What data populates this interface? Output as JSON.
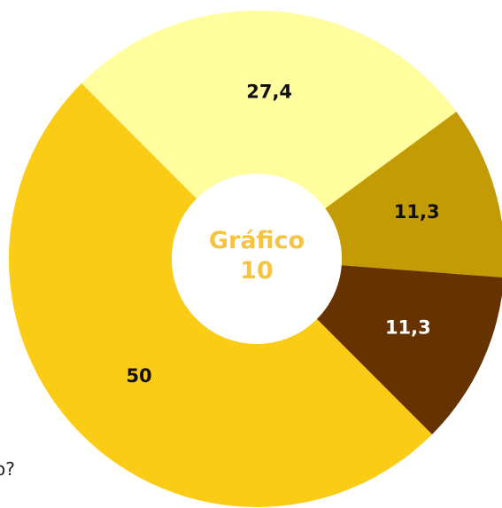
{
  "chart_data": {
    "type": "donut",
    "title": "Gráfico 10",
    "annotation": "o?",
    "categories": [
      null,
      null,
      null,
      null
    ],
    "values": [
      27.4,
      11.3,
      11.3,
      50
    ],
    "value_labels": [
      "27,4",
      "11,3",
      "11,3",
      "50"
    ],
    "colors": [
      "#fffd9e",
      "#c29b05",
      "#663300",
      "#facc15"
    ]
  }
}
